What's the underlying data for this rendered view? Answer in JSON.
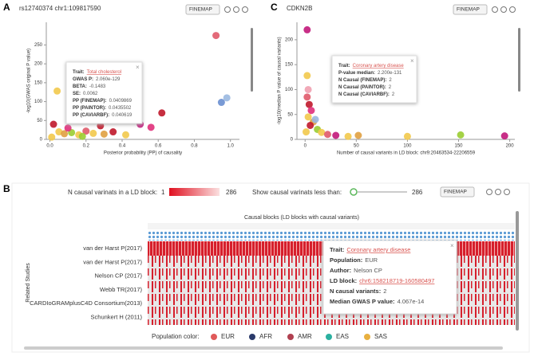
{
  "panels": [
    {
      "letter": "A",
      "title": "rs12740374 chr1:109817590",
      "method": "FINEMAP",
      "xlabel": "Posterior probability (PP) of causality",
      "ylabel": "-log10(GWAS original P value)",
      "xlim": [
        -0.02,
        1.05
      ],
      "ylim": [
        0,
        310
      ],
      "xticks": [
        {
          "value": 0,
          "label": "0.0"
        },
        0.2,
        0.4,
        0.6,
        0.8,
        {
          "value": 1,
          "label": "1.0"
        }
      ],
      "yticks": [
        0,
        50,
        100,
        150,
        200,
        250
      ],
      "points": [
        {
          "x": 0.92,
          "y": 275,
          "color": "#e05a6a"
        },
        {
          "x": 0.98,
          "y": 110,
          "color": "#9ab8e0"
        },
        {
          "x": 0.95,
          "y": 98,
          "color": "#6a8fd0"
        },
        {
          "x": 0.04,
          "y": 128,
          "color": "#f2c94c"
        },
        {
          "x": 0.62,
          "y": 70,
          "color": "#c0182b"
        },
        {
          "x": 0.5,
          "y": 40,
          "color": "#c2187a"
        },
        {
          "x": 0.56,
          "y": 32,
          "color": "#e0307a"
        },
        {
          "x": 0.28,
          "y": 36,
          "color": "#c0182b"
        },
        {
          "x": 0.02,
          "y": 40,
          "color": "#c0182b"
        },
        {
          "x": 0.05,
          "y": 20,
          "color": "#f2c94c"
        },
        {
          "x": 0.08,
          "y": 15,
          "color": "#e0a040"
        },
        {
          "x": 0.12,
          "y": 18,
          "color": "#9acd32"
        },
        {
          "x": 0.16,
          "y": 12,
          "color": "#f2c94c"
        },
        {
          "x": 0.2,
          "y": 22,
          "color": "#e05a6a"
        },
        {
          "x": 0.24,
          "y": 16,
          "color": "#f2c94c"
        },
        {
          "x": 0.3,
          "y": 14,
          "color": "#e0a040"
        },
        {
          "x": 0.35,
          "y": 20,
          "color": "#c0182b"
        },
        {
          "x": 0.42,
          "y": 12,
          "color": "#f2c94c"
        },
        {
          "x": 0.1,
          "y": 30,
          "color": "#e0307a"
        },
        {
          "x": 0.18,
          "y": 8,
          "color": "#9acd32"
        },
        {
          "x": 0.01,
          "y": 6,
          "color": "#f2c94c"
        }
      ],
      "tooltip": [
        {
          "label": "Trait:",
          "value": "Total cholesterol",
          "link": true
        },
        {
          "label": "GWAS P:",
          "value": "2.060e-129"
        },
        {
          "label": "BETA:",
          "value": "-0.1483"
        },
        {
          "label": "SE:",
          "value": "0.0062"
        },
        {
          "label": "PP (FINEMAP):",
          "value": "0.0409869"
        },
        {
          "label": "PP (PAINTOR):",
          "value": "0.0435502"
        },
        {
          "label": "PP (CAVIARBF):",
          "value": "0.040619"
        }
      ]
    },
    {
      "letter": "C",
      "title": "CDKN2B",
      "method": "FINEMAP",
      "xlabel": "Number of causal variants in LD block: chr9:20463534-22206559",
      "ylabel": "-log10(median P value of causal variants)",
      "xlim": [
        -8,
        205
      ],
      "ylim": [
        0,
        235
      ],
      "xticks": [
        0,
        50,
        100,
        150,
        200
      ],
      "yticks": [
        0,
        50,
        100,
        150,
        200
      ],
      "points": [
        {
          "x": 2,
          "y": 220,
          "color": "#c2187a"
        },
        {
          "x": 2,
          "y": 128,
          "color": "#f2c94c"
        },
        {
          "x": 3,
          "y": 100,
          "color": "#f0a0b0"
        },
        {
          "x": 2,
          "y": 85,
          "color": "#e05a6a"
        },
        {
          "x": 4,
          "y": 70,
          "color": "#c0182b"
        },
        {
          "x": 6,
          "y": 58,
          "color": "#e0307a"
        },
        {
          "x": 3,
          "y": 45,
          "color": "#f2c94c"
        },
        {
          "x": 8,
          "y": 35,
          "color": "#e0a040"
        },
        {
          "x": 5,
          "y": 28,
          "color": "#c0182b"
        },
        {
          "x": 12,
          "y": 20,
          "color": "#9acd32"
        },
        {
          "x": 16,
          "y": 14,
          "color": "#f2c94c"
        },
        {
          "x": 22,
          "y": 10,
          "color": "#e05a6a"
        },
        {
          "x": 30,
          "y": 8,
          "color": "#c2187a"
        },
        {
          "x": 42,
          "y": 6,
          "color": "#f2c94c"
        },
        {
          "x": 52,
          "y": 8,
          "color": "#e0a040"
        },
        {
          "x": 100,
          "y": 6,
          "color": "#f2c94c"
        },
        {
          "x": 152,
          "y": 9,
          "color": "#9acd32"
        },
        {
          "x": 195,
          "y": 7,
          "color": "#c2187a"
        },
        {
          "x": 10,
          "y": 40,
          "color": "#9ab8e0"
        },
        {
          "x": 1,
          "y": 15,
          "color": "#f2c94c"
        }
      ],
      "tooltip": [
        {
          "label": "Trait:",
          "value": "Coronary artery disease",
          "link": true
        },
        {
          "label": "P-value median:",
          "value": "2.200e-131"
        },
        {
          "label": "N Causal (FINEMAP):",
          "value": "2"
        },
        {
          "label": "N Causal (PAINTOR):",
          "value": "2"
        },
        {
          "label": "N Causal (CAVIARBF):",
          "value": "2"
        }
      ]
    }
  ],
  "panel_b": {
    "letter": "B",
    "legend_label": "N causal varinats in a LD block:",
    "legend_min": "1",
    "legend_max": "286",
    "filter_label": "Show causal varinats less than:",
    "filter_value": "286",
    "method": "FINEMAP",
    "heading": "Causal blocks (LD blocks with causal variants)",
    "ylabel": "Related Studies",
    "studies": [
      "van der Harst P(2017)",
      "van der Harst P(2017)",
      "Nelson CP (2017)",
      "Webb TR(2017)",
      "CARDIoGRAMplusC4D Consortium(2013)",
      "Schunkert H (2011)"
    ],
    "tooltip": [
      {
        "label": "Trait:",
        "value": "Coronary artery disease",
        "link": true
      },
      {
        "label": "Population:",
        "value": "EUR"
      },
      {
        "label": "Author:",
        "value": "Nelson CP"
      },
      {
        "label": "LD block:",
        "value": "chr6:158218719-160580497",
        "link": true
      },
      {
        "label": "N causal variants:",
        "value": "2"
      },
      {
        "label": "Median GWAS P value:",
        "value": "4.067e-14"
      }
    ],
    "population_label": "Population color:",
    "populations": [
      {
        "name": "EUR",
        "color": "#e05a5a"
      },
      {
        "name": "AFR",
        "color": "#2a3a6a"
      },
      {
        "name": "AMR",
        "color": "#b04050"
      },
      {
        "name": "EAS",
        "color": "#2bb0a0"
      },
      {
        "name": "SAS",
        "color": "#e8b040"
      }
    ]
  }
}
